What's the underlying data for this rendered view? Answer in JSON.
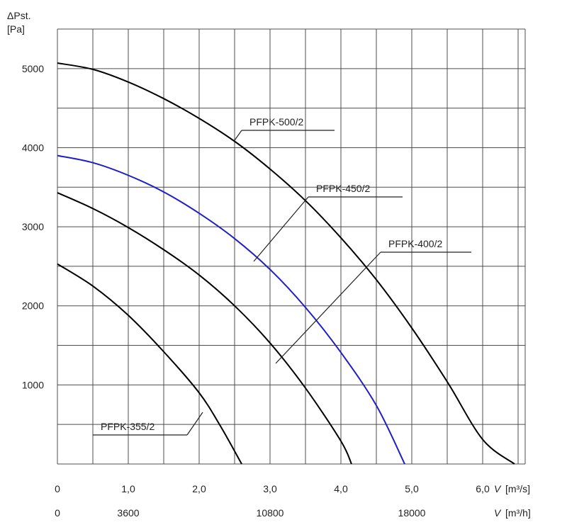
{
  "chart_data": {
    "type": "line",
    "title": "",
    "ylabel_symbol": "ΔPst.",
    "ylabel_unit": "[Pa]",
    "xlabel_symbol": "V",
    "xlabel_unit": "[m³/s]",
    "x2label_symbol": "V",
    "x2label_unit": "[m³/h]",
    "xlim": [
      0,
      6.6
    ],
    "ylim": [
      0,
      5500
    ],
    "grid": true,
    "x_ticks": [
      "0",
      "1,0",
      "2,0",
      "3,0",
      "4,0",
      "5,0",
      "6,0"
    ],
    "x_tick_values": [
      0,
      1,
      2,
      3,
      4,
      5,
      6
    ],
    "x2_ticks": [
      "0",
      "3600",
      "10800",
      "18000"
    ],
    "x2_tick_values": [
      0,
      1,
      3,
      5
    ],
    "y_ticks": [
      "1000",
      "2000",
      "3000",
      "4000",
      "5000"
    ],
    "y_tick_values": [
      1000,
      2000,
      3000,
      4000,
      5000
    ],
    "series": [
      {
        "name": "PFPK-500/2",
        "color": "#000000",
        "x": [
          0.0,
          0.5,
          1.0,
          1.5,
          2.0,
          2.5,
          3.0,
          3.5,
          4.0,
          4.5,
          5.0,
          5.5,
          6.0,
          6.45
        ],
        "y": [
          5070,
          4990,
          4830,
          4620,
          4370,
          4080,
          3730,
          3330,
          2860,
          2330,
          1720,
          1040,
          310,
          0
        ]
      },
      {
        "name": "PFPK-450/2",
        "color": "#1f1fc8",
        "x": [
          0.0,
          0.5,
          1.0,
          1.5,
          2.0,
          2.5,
          3.0,
          3.5,
          4.0,
          4.5,
          4.9
        ],
        "y": [
          3900,
          3810,
          3650,
          3440,
          3170,
          2850,
          2460,
          1980,
          1410,
          740,
          0
        ]
      },
      {
        "name": "PFPK-400/2",
        "color": "#000000",
        "x": [
          0.0,
          0.5,
          1.0,
          1.5,
          2.0,
          2.5,
          3.0,
          3.5,
          4.0,
          4.15
        ],
        "y": [
          3430,
          3230,
          2990,
          2710,
          2390,
          2000,
          1530,
          960,
          290,
          0
        ]
      },
      {
        "name": "PFPK-355/2",
        "color": "#000000",
        "x": [
          0.0,
          0.5,
          1.0,
          1.5,
          2.0,
          2.3,
          2.6
        ],
        "y": [
          2530,
          2250,
          1880,
          1420,
          900,
          480,
          0
        ]
      }
    ],
    "labels": [
      {
        "series": "PFPK-500/2",
        "text": "PFPK-500/2"
      },
      {
        "series": "PFPK-450/2",
        "text": "PFPK-450/2"
      },
      {
        "series": "PFPK-400/2",
        "text": "PFPK-400/2"
      },
      {
        "series": "PFPK-355/2",
        "text": "PFPK-355/2"
      }
    ]
  }
}
